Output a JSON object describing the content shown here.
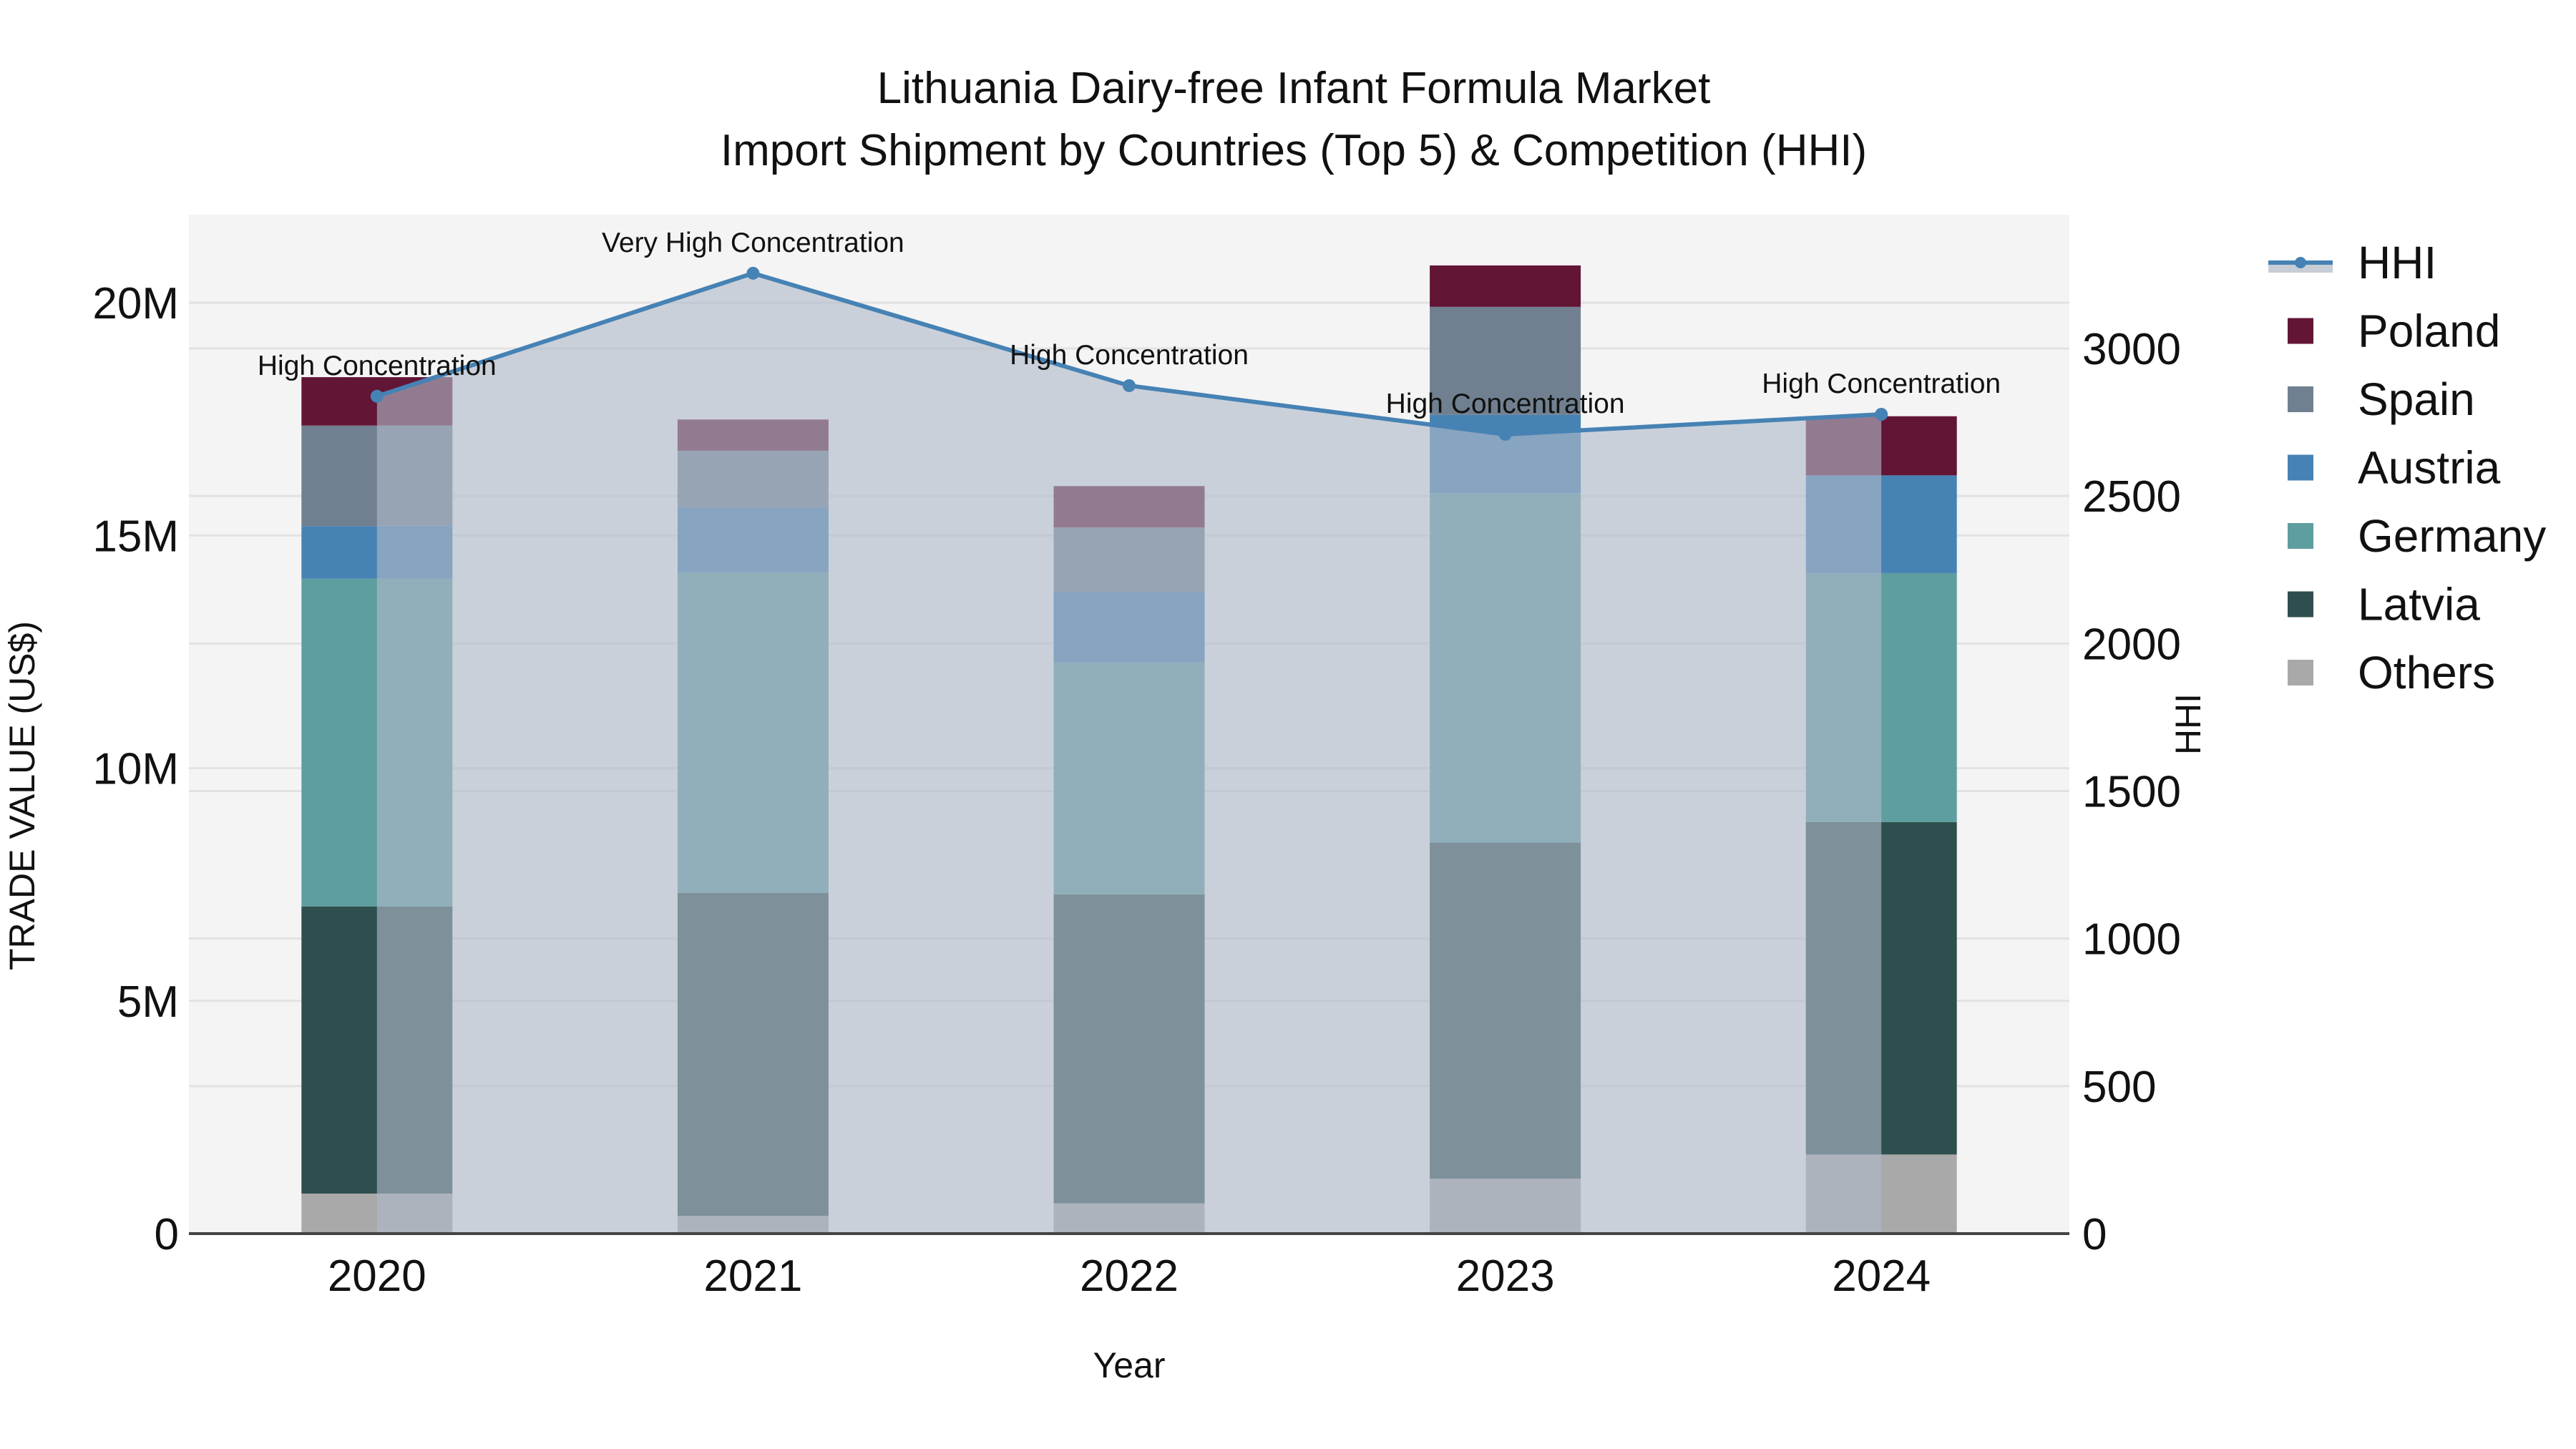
{
  "title": {
    "line1": "Lithuania Dairy-free Infant Formula Market",
    "line2": "Import Shipment by Countries (Top 5) & Competition (HHI)"
  },
  "axes": {
    "x_label": "Year",
    "y_left_label": "TRADE VALUE (US$)",
    "y_right_label": "HHI",
    "y_left_ticks": [
      "0",
      "5M",
      "10M",
      "15M",
      "20M"
    ],
    "y_right_ticks": [
      "0",
      "500",
      "1000",
      "1500",
      "2000",
      "2500",
      "3000"
    ]
  },
  "legend": [
    {
      "name": "HHI",
      "type": "line",
      "color": "#4682b4"
    },
    {
      "name": "Poland",
      "type": "bar",
      "color": "#631536"
    },
    {
      "name": "Spain",
      "type": "bar",
      "color": "#708090"
    },
    {
      "name": "Austria",
      "type": "bar",
      "color": "#4682b4"
    },
    {
      "name": "Germany",
      "type": "bar",
      "color": "#5f9ea0"
    },
    {
      "name": "Latvia",
      "type": "bar",
      "color": "#2f4f4f"
    },
    {
      "name": "Others",
      "type": "bar",
      "color": "#a9a9a9"
    }
  ],
  "colors": {
    "plot_bg": "#f4f4f4",
    "gridline": "#e2e2e2",
    "hhi_line": "#4682b4",
    "hhi_fill": "rgba(176,186,202,0.62)",
    "axis_line": "#444444"
  },
  "chart_data": {
    "type": "bar",
    "subtype": "stacked bar + line (secondary axis)",
    "title": "Lithuania Dairy-free Infant Formula Market — Import Shipment by Countries (Top 5) & Competition (HHI)",
    "xlabel": "Year",
    "ylabel": "TRADE VALUE (US$)",
    "y2label": "HHI",
    "categories": [
      "2020",
      "2021",
      "2022",
      "2023",
      "2024"
    ],
    "ylim": [
      0,
      21900000
    ],
    "y2lim": [
      0,
      3435
    ],
    "grid": true,
    "legend_position": "right",
    "series": [
      {
        "name": "Others",
        "color": "#a9a9a9",
        "values": [
          860000,
          380000,
          650000,
          1180000,
          1700000
        ]
      },
      {
        "name": "Latvia",
        "color": "#2f4f4f",
        "values": [
          6170000,
          6940000,
          6640000,
          7220000,
          7140000
        ]
      },
      {
        "name": "Germany",
        "color": "#5f9ea0",
        "values": [
          7040000,
          6880000,
          4980000,
          7510000,
          5350000
        ]
      },
      {
        "name": "Austria",
        "color": "#4682b4",
        "values": [
          1130000,
          1400000,
          1520000,
          1680000,
          2100000
        ]
      },
      {
        "name": "Spain",
        "color": "#708090",
        "values": [
          2160000,
          1220000,
          1380000,
          2320000,
          0
        ]
      },
      {
        "name": "Poland",
        "color": "#631536",
        "values": [
          1040000,
          670000,
          890000,
          890000,
          1270000
        ]
      }
    ],
    "line_series": {
      "name": "HHI",
      "axis": "y2",
      "color": "#4682b4",
      "values": [
        2838,
        3255,
        2874,
        2709,
        2777
      ],
      "annotations": [
        "High Concentration",
        "Very High Concentration",
        "High Concentration",
        "High Concentration",
        "High Concentration"
      ]
    }
  }
}
